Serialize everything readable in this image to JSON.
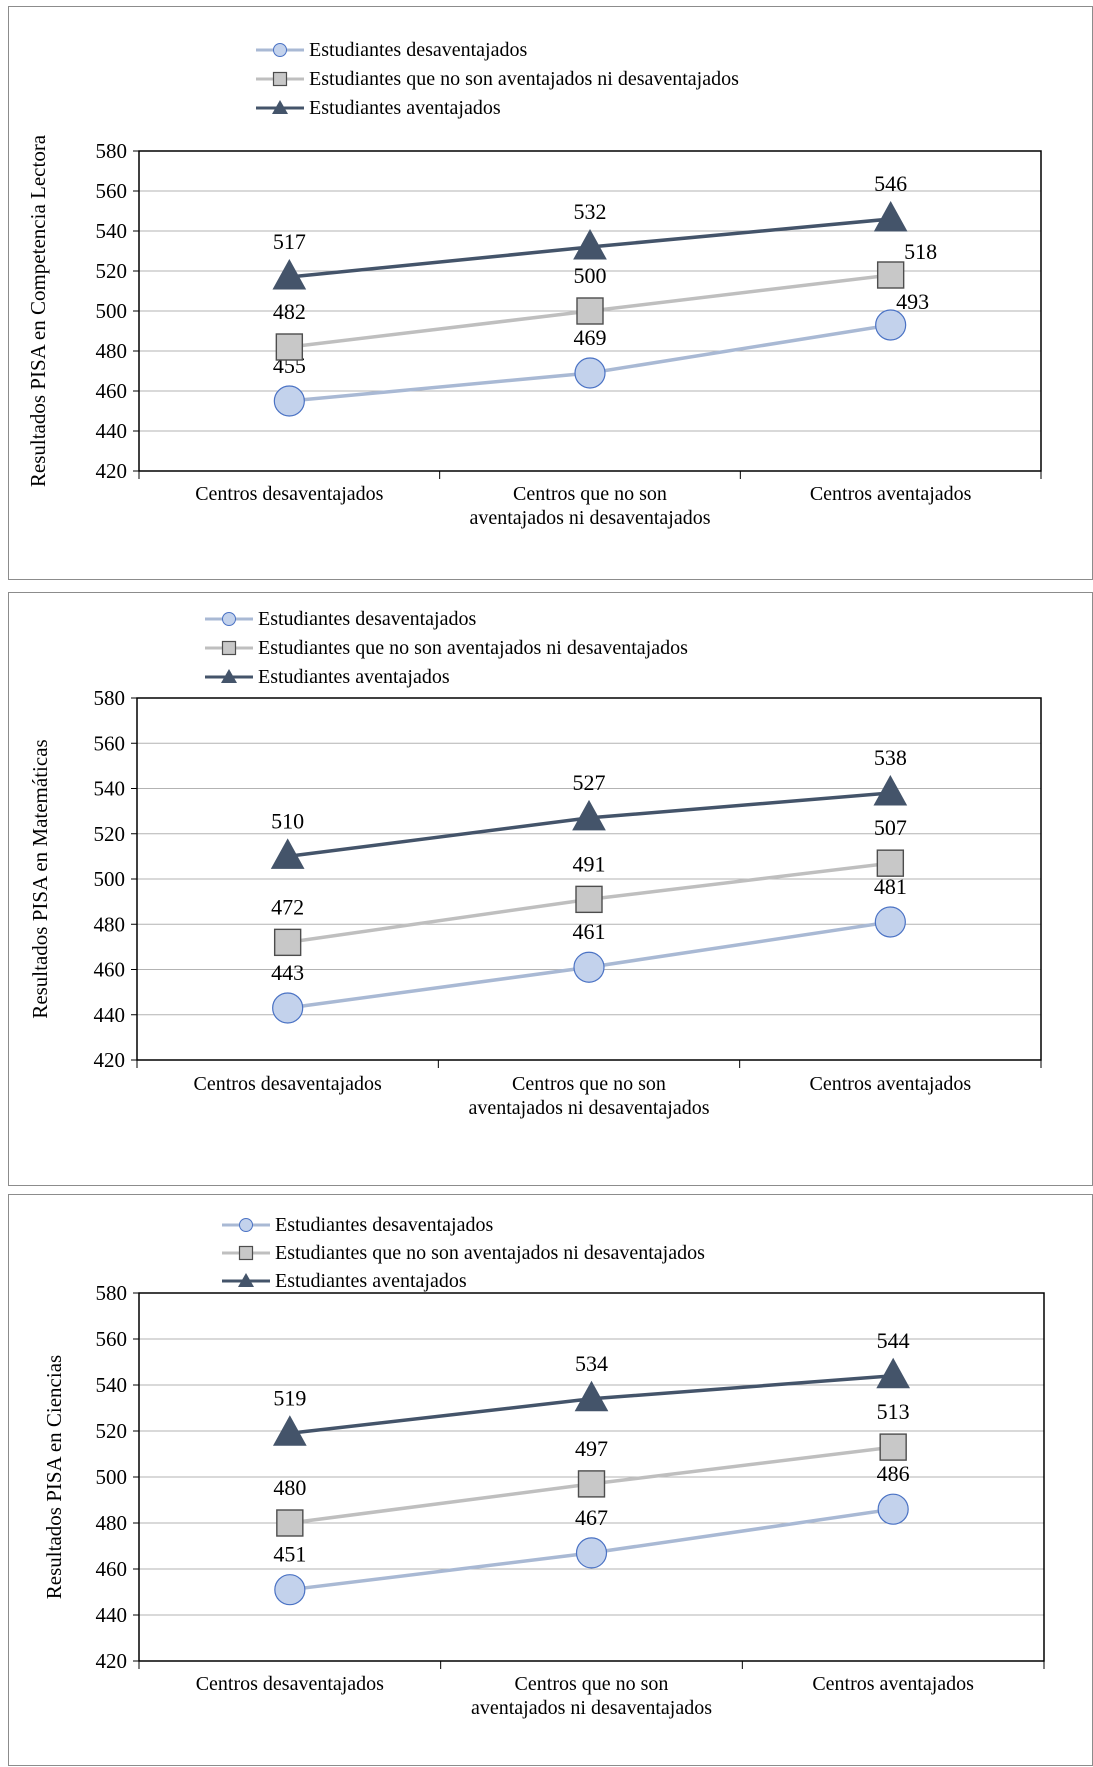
{
  "colors": {
    "disadvantaged_line": "#a9b9d4",
    "disadvantaged_marker_fill": "#c3d2ec",
    "disadvantaged_marker_stroke": "#4a72c4",
    "neutral_line": "#bfbfbf",
    "neutral_marker_fill": "#c8c8c8",
    "neutral_marker_stroke": "#4d4d4d",
    "advantaged_line": "#44546a",
    "advantaged_marker_fill": "#44546a",
    "gridline": "#b3b3b3",
    "plot_border": "#000000"
  },
  "chart_data": [
    {
      "type": "line",
      "ylabel": "Resultados PISA en Competencia Lectora",
      "ylim": [
        420,
        580
      ],
      "yticks": [
        "580",
        "560",
        "540",
        "520",
        "500",
        "480",
        "460",
        "440",
        "420"
      ],
      "categories": [
        [
          "Centros desaventajados"
        ],
        [
          "Centros que no son",
          "aventajados ni desaventajados"
        ],
        [
          "Centros aventajados"
        ]
      ],
      "grid": true,
      "legend_position": "top",
      "series": [
        {
          "name": "Estudiantes desaventajados",
          "marker": "circle",
          "values": [
            455,
            469,
            493
          ],
          "labels": [
            "455",
            "469",
            "493"
          ]
        },
        {
          "name": "Estudiantes que no son aventajados ni desaventajados",
          "marker": "square",
          "values": [
            482,
            500,
            518
          ],
          "labels": [
            "482",
            "500",
            "518"
          ]
        },
        {
          "name": "Estudiantes aventajados",
          "marker": "triangle",
          "values": [
            517,
            532,
            546
          ],
          "labels": [
            "517",
            "532",
            "546"
          ]
        }
      ]
    },
    {
      "type": "line",
      "ylabel": "Resultados PISA en Matemáticas",
      "ylim": [
        420,
        580
      ],
      "yticks": [
        "580",
        "560",
        "540",
        "520",
        "500",
        "480",
        "460",
        "440",
        "420"
      ],
      "categories": [
        [
          "Centros desaventajados"
        ],
        [
          "Centros que no son",
          "aventajados ni desaventajados"
        ],
        [
          "Centros aventajados"
        ]
      ],
      "grid": true,
      "legend_position": "top",
      "series": [
        {
          "name": "Estudiantes desaventajados",
          "marker": "circle",
          "values": [
            443,
            461,
            481
          ],
          "labels": [
            "443",
            "461",
            "481"
          ]
        },
        {
          "name": "Estudiantes que no son aventajados ni desaventajados",
          "marker": "square",
          "values": [
            472,
            491,
            507
          ],
          "labels": [
            "472",
            "491",
            "507"
          ]
        },
        {
          "name": "Estudiantes aventajados",
          "marker": "triangle",
          "values": [
            510,
            527,
            538
          ],
          "labels": [
            "510",
            "527",
            "538"
          ]
        }
      ]
    },
    {
      "type": "line",
      "ylabel": "Resultados PISA en Ciencias",
      "ylim": [
        420,
        580
      ],
      "yticks": [
        "580",
        "560",
        "540",
        "520",
        "500",
        "480",
        "460",
        "440",
        "420"
      ],
      "categories": [
        [
          "Centros desaventajados"
        ],
        [
          "Centros que no son",
          "aventajados ni desaventajados"
        ],
        [
          "Centros aventajados"
        ]
      ],
      "grid": true,
      "legend_position": "top",
      "series": [
        {
          "name": "Estudiantes desaventajados",
          "marker": "circle",
          "values": [
            451,
            467,
            486
          ],
          "labels": [
            "451",
            "467",
            "486"
          ]
        },
        {
          "name": "Estudiantes que no son aventajados ni desaventajados",
          "marker": "square",
          "values": [
            480,
            497,
            513
          ],
          "labels": [
            "480",
            "497",
            "513"
          ]
        },
        {
          "name": "Estudiantes aventajados",
          "marker": "triangle",
          "values": [
            519,
            534,
            544
          ],
          "labels": [
            "519",
            "534",
            "544"
          ]
        }
      ]
    }
  ]
}
